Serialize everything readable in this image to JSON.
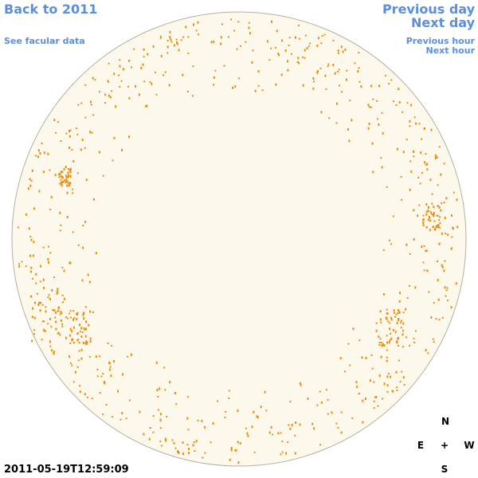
{
  "links": {
    "back": "Back to 2011",
    "facular": "See facular data",
    "previous_day": "Previous day",
    "next_day": "Next day",
    "previous_hour": "Previous hour",
    "next_hour": "Next hour"
  },
  "timestamp": "2011-05-19T12:59:09",
  "compass": {
    "north": "N",
    "east": "E",
    "center": "+",
    "west": "W",
    "south": "S"
  }
}
